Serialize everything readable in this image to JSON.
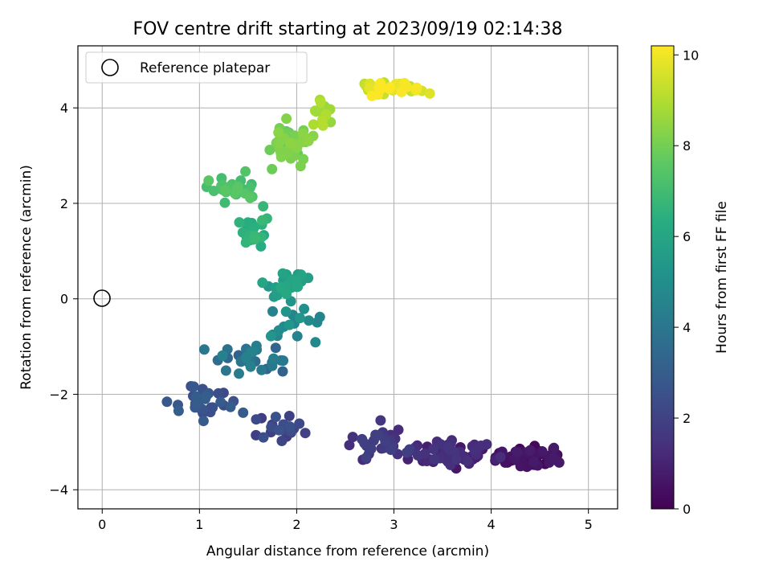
{
  "chart_data": {
    "type": "scatter",
    "title": "FOV centre drift starting at 2023/09/19 02:14:38",
    "xlabel": "Angular distance from reference (arcmin)",
    "ylabel": "Rotation from reference (arcmin)",
    "colorbar_label": "Hours from first FF file",
    "xlim": [
      -0.25,
      5.3
    ],
    "ylim": [
      -4.4,
      5.3
    ],
    "clim": [
      0,
      10.2
    ],
    "xticks": [
      0,
      1,
      2,
      3,
      4,
      5
    ],
    "yticks": [
      -4,
      -2,
      0,
      2,
      4
    ],
    "cticks": [
      0,
      2,
      4,
      6,
      8,
      10
    ],
    "grid": true,
    "legend": {
      "position": "top-left",
      "entries": [
        "Reference platepar"
      ]
    },
    "reference_point": {
      "x": 0,
      "y": 0
    },
    "colormap": "viridis",
    "clusters": [
      {
        "center": [
          4.4,
          -3.3
        ],
        "spread": [
          0.32,
          0.2
        ],
        "t_range": [
          0.0,
          0.8
        ],
        "n": 60
      },
      {
        "center": [
          3.6,
          -3.25
        ],
        "spread": [
          0.35,
          0.22
        ],
        "t_range": [
          0.6,
          1.6
        ],
        "n": 70
      },
      {
        "center": [
          2.9,
          -3.05
        ],
        "spread": [
          0.3,
          0.22
        ],
        "t_range": [
          1.3,
          2.0
        ],
        "n": 35
      },
      {
        "center": [
          1.85,
          -2.75
        ],
        "spread": [
          0.22,
          0.25
        ],
        "t_range": [
          1.8,
          2.6
        ],
        "n": 22
      },
      {
        "center": [
          1.1,
          -2.2
        ],
        "spread": [
          0.25,
          0.3
        ],
        "t_range": [
          2.3,
          3.1
        ],
        "n": 30
      },
      {
        "center": [
          1.55,
          -1.25
        ],
        "spread": [
          0.25,
          0.25
        ],
        "t_range": [
          3.2,
          4.6
        ],
        "n": 30
      },
      {
        "center": [
          1.95,
          -0.45
        ],
        "spread": [
          0.18,
          0.3
        ],
        "t_range": [
          4.5,
          5.4
        ],
        "n": 18
      },
      {
        "center": [
          1.9,
          0.35
        ],
        "spread": [
          0.2,
          0.25
        ],
        "t_range": [
          5.4,
          6.2
        ],
        "n": 25
      },
      {
        "center": [
          1.55,
          1.4
        ],
        "spread": [
          0.15,
          0.3
        ],
        "t_range": [
          6.2,
          6.9
        ],
        "n": 25
      },
      {
        "center": [
          1.3,
          2.3
        ],
        "spread": [
          0.25,
          0.2
        ],
        "t_range": [
          6.9,
          7.6
        ],
        "n": 30
      },
      {
        "center": [
          1.95,
          3.25
        ],
        "spread": [
          0.15,
          0.35
        ],
        "t_range": [
          7.6,
          8.5
        ],
        "n": 45
      },
      {
        "center": [
          2.25,
          3.9
        ],
        "spread": [
          0.12,
          0.25
        ],
        "t_range": [
          8.5,
          9.2
        ],
        "n": 15
      },
      {
        "center": [
          2.95,
          4.4
        ],
        "spread": [
          0.25,
          0.15
        ],
        "t_range": [
          9.2,
          10.2
        ],
        "n": 40
      }
    ]
  }
}
